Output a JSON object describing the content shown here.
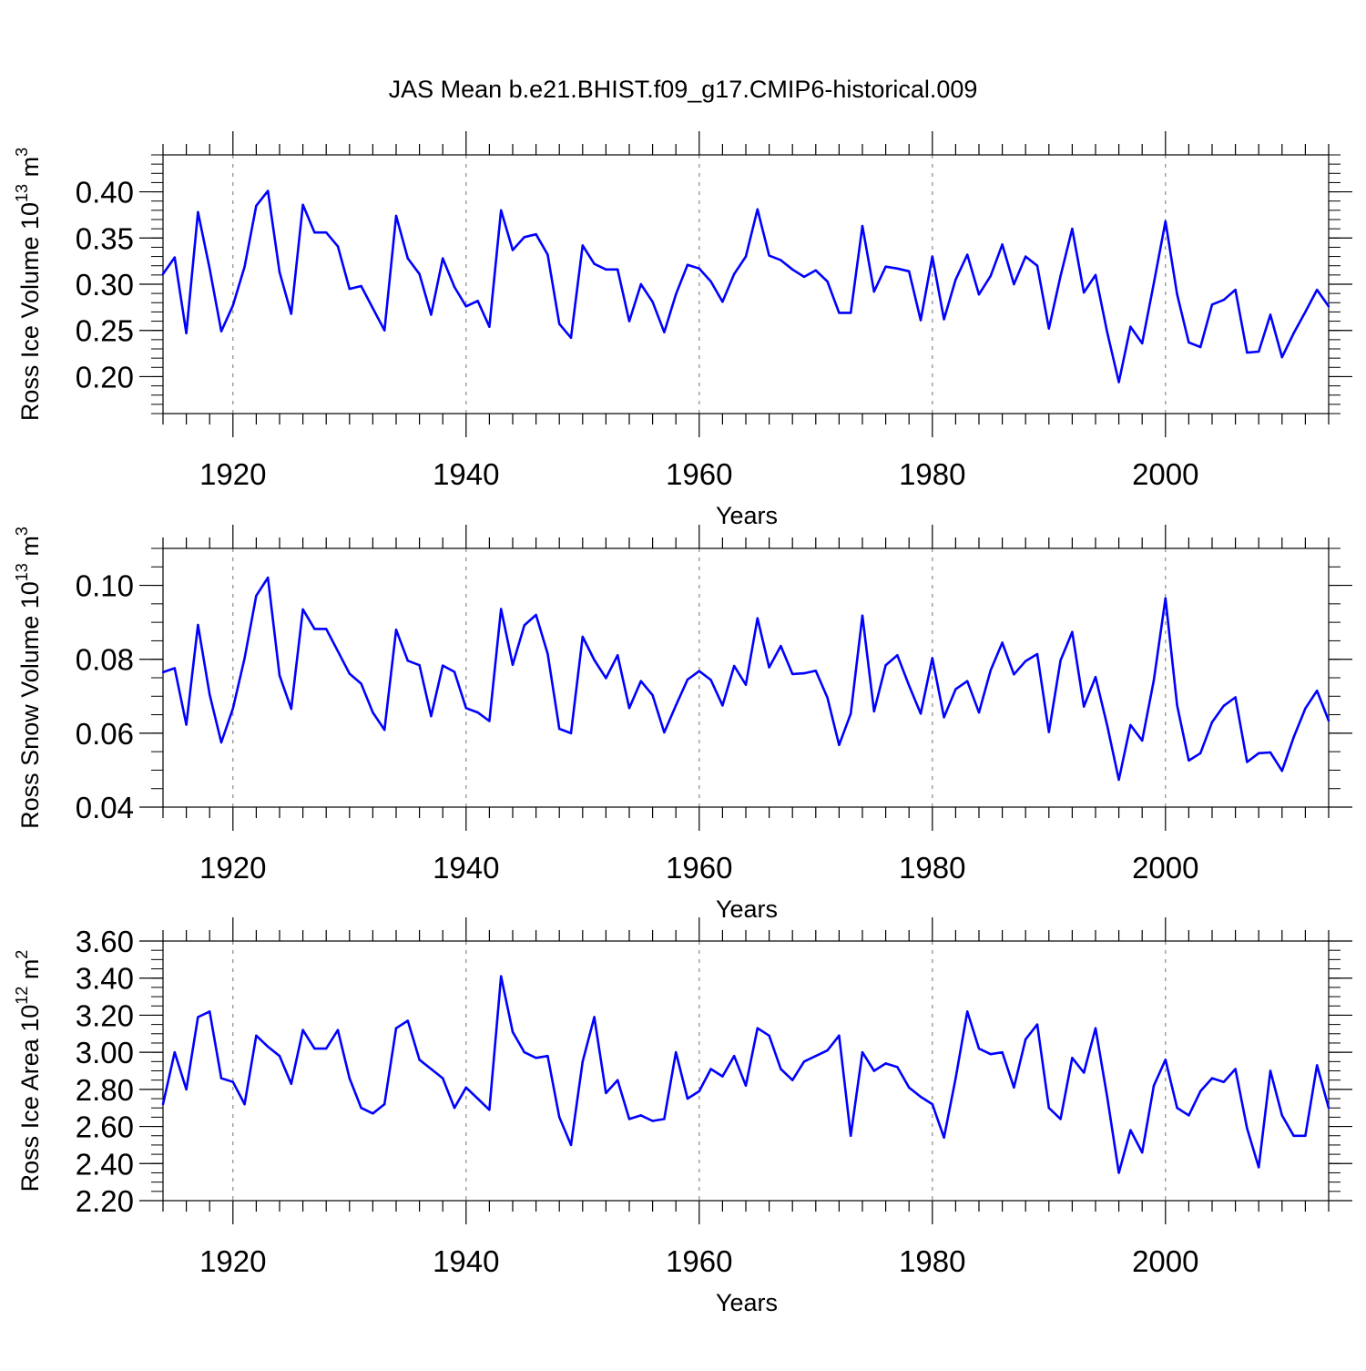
{
  "title": "JAS Mean b.e21.BHIST.f09_g17.CMIP6-historical.009",
  "line_color": "#0000ff",
  "chart_data": [
    {
      "type": "line",
      "ylabel": "Ross Ice Volume 10",
      "ylabel_exp": "13",
      "ylabel_unit": " m",
      "ylabel_unit_exp": "3",
      "xlabel": "Years",
      "xlim": [
        1914,
        2014
      ],
      "ylim": [
        0.16,
        0.44
      ],
      "x_ticks": [
        1920,
        1940,
        1960,
        1980,
        2000
      ],
      "x_tick_labels": [
        "1920",
        "1940",
        "1960",
        "1980",
        "2000"
      ],
      "y_ticks": [
        0.2,
        0.25,
        0.3,
        0.35,
        0.4
      ],
      "y_tick_labels": [
        "0.20",
        "0.25",
        "0.30",
        "0.35",
        "0.40"
      ],
      "y_minor_step": 0.01,
      "x_start": 1914,
      "values": [
        0.311,
        0.329,
        0.247,
        0.378,
        0.317,
        0.249,
        0.277,
        0.319,
        0.385,
        0.401,
        0.313,
        0.268,
        0.386,
        0.356,
        0.356,
        0.341,
        0.295,
        0.298,
        0.274,
        0.25,
        0.374,
        0.328,
        0.311,
        0.267,
        0.328,
        0.297,
        0.276,
        0.282,
        0.254,
        0.38,
        0.337,
        0.351,
        0.354,
        0.332,
        0.257,
        0.242,
        0.342,
        0.322,
        0.316,
        0.316,
        0.26,
        0.3,
        0.281,
        0.248,
        0.289,
        0.321,
        0.317,
        0.303,
        0.281,
        0.311,
        0.33,
        0.381,
        0.331,
        0.326,
        0.316,
        0.308,
        0.315,
        0.303,
        0.269,
        0.269,
        0.363,
        0.292,
        0.319,
        0.317,
        0.314,
        0.261,
        0.33,
        0.262,
        0.305,
        0.332,
        0.289,
        0.309,
        0.343,
        0.3,
        0.33,
        0.32,
        0.252,
        0.309,
        0.36,
        0.291,
        0.31,
        0.248,
        0.194,
        0.254,
        0.236,
        0.301,
        0.368,
        0.289,
        0.237,
        0.232,
        0.278,
        0.283,
        0.294,
        0.226,
        0.227,
        0.267,
        0.221,
        0.247,
        0.27,
        0.294,
        0.276
      ]
    },
    {
      "type": "line",
      "ylabel": "Ross Snow Volume 10",
      "ylabel_exp": "13",
      "ylabel_unit": " m",
      "ylabel_unit_exp": "3",
      "xlabel": "Years",
      "xlim": [
        1914,
        2014
      ],
      "ylim": [
        0.04,
        0.11
      ],
      "x_ticks": [
        1920,
        1940,
        1960,
        1980,
        2000
      ],
      "x_tick_labels": [
        "1920",
        "1940",
        "1960",
        "1980",
        "2000"
      ],
      "y_ticks": [
        0.04,
        0.06,
        0.08,
        0.1
      ],
      "y_tick_labels": [
        "0.04",
        "0.06",
        "0.08",
        "0.10"
      ],
      "y_minor_step": 0.005,
      "x_start": 1914,
      "values": [
        0.0765,
        0.0776,
        0.0623,
        0.0893,
        0.0705,
        0.0575,
        0.0667,
        0.0803,
        0.0972,
        0.1021,
        0.0756,
        0.0666,
        0.0935,
        0.0882,
        0.0882,
        0.0822,
        0.0761,
        0.0734,
        0.0656,
        0.0609,
        0.088,
        0.0796,
        0.0784,
        0.0646,
        0.0783,
        0.0766,
        0.0668,
        0.0656,
        0.0633,
        0.0936,
        0.0785,
        0.0892,
        0.092,
        0.0815,
        0.0612,
        0.06,
        0.0861,
        0.0798,
        0.0749,
        0.0811,
        0.0668,
        0.0741,
        0.0703,
        0.0602,
        0.0675,
        0.0745,
        0.0768,
        0.0744,
        0.0675,
        0.0782,
        0.0731,
        0.0911,
        0.0778,
        0.0836,
        0.076,
        0.0762,
        0.0769,
        0.0696,
        0.0568,
        0.0653,
        0.0918,
        0.0659,
        0.0784,
        0.0811,
        0.0729,
        0.0653,
        0.0803,
        0.0643,
        0.0719,
        0.0741,
        0.0656,
        0.077,
        0.0845,
        0.0759,
        0.0795,
        0.0814,
        0.0603,
        0.0797,
        0.0874,
        0.0672,
        0.0752,
        0.0621,
        0.0474,
        0.0622,
        0.058,
        0.0743,
        0.0965,
        0.0675,
        0.0526,
        0.0546,
        0.063,
        0.0674,
        0.0697,
        0.0522,
        0.0546,
        0.0548,
        0.0498,
        0.0589,
        0.0667,
        0.0715,
        0.0634
      ]
    },
    {
      "type": "line",
      "ylabel": "Ross Ice Area 10",
      "ylabel_exp": "12",
      "ylabel_unit": " m",
      "ylabel_unit_exp": "2",
      "xlabel": "Years",
      "xlim": [
        1914,
        2014
      ],
      "ylim": [
        2.2,
        3.6
      ],
      "x_ticks": [
        1920,
        1940,
        1960,
        1980,
        2000
      ],
      "x_tick_labels": [
        "1920",
        "1940",
        "1960",
        "1980",
        "2000"
      ],
      "y_ticks": [
        2.2,
        2.4,
        2.6,
        2.8,
        3.0,
        3.2,
        3.4,
        3.6
      ],
      "y_tick_labels": [
        "2.20",
        "2.40",
        "2.60",
        "2.80",
        "3.00",
        "3.20",
        "3.40",
        "3.60"
      ],
      "y_minor_step": 0.05,
      "x_start": 1914,
      "values": [
        2.72,
        3.0,
        2.8,
        3.19,
        3.22,
        2.86,
        2.84,
        2.72,
        3.09,
        3.03,
        2.98,
        2.83,
        3.12,
        3.02,
        3.02,
        3.12,
        2.86,
        2.7,
        2.67,
        2.72,
        3.13,
        3.17,
        2.96,
        2.91,
        2.86,
        2.7,
        2.81,
        2.75,
        2.69,
        3.41,
        3.11,
        3.0,
        2.97,
        2.98,
        2.65,
        2.5,
        2.95,
        3.19,
        2.78,
        2.85,
        2.64,
        2.66,
        2.63,
        2.64,
        3.0,
        2.75,
        2.79,
        2.91,
        2.87,
        2.98,
        2.82,
        3.13,
        3.09,
        2.91,
        2.85,
        2.95,
        2.98,
        3.01,
        3.09,
        2.55,
        3.0,
        2.9,
        2.94,
        2.92,
        2.81,
        2.76,
        2.72,
        2.54,
        2.86,
        3.22,
        3.02,
        2.99,
        3.0,
        2.81,
        3.07,
        3.15,
        2.7,
        2.64,
        2.97,
        2.89,
        3.13,
        2.76,
        2.35,
        2.58,
        2.46,
        2.82,
        2.96,
        2.7,
        2.66,
        2.79,
        2.86,
        2.84,
        2.91,
        2.59,
        2.38,
        2.9,
        2.66,
        2.55,
        2.55,
        2.93,
        2.7
      ]
    }
  ]
}
